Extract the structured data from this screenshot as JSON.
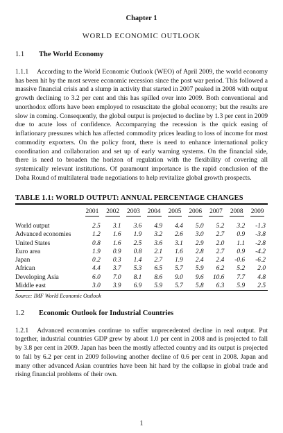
{
  "chapter_label": "Chapter 1",
  "chapter_title": "WORLD ECONOMIC OUTLOOK",
  "section_1": {
    "number": "1.1",
    "title": "The World Economy"
  },
  "para_1_1_1": {
    "number": "1.1.1",
    "text": "According to the World Economic Outlook (WEO) of April 2009, the world economy has been hit by the most severe economic recession since the post war period. This followed a massive financial crisis and a slump in activity that started in 2007 peaked in 2008 with output growth declining to 3.2 per cent and this has spilled over into 2009. Both conventional and unorthodox efforts have been employed to resuscitate the global economy; but the results are slow in coming. Consequently, the global output is projected to decline by 1.3 per cent in 2009 due to acute loss of confidence. Accompanying the recession is the quick easing of inflationary pressures which has affected commodity prices leading to loss of income for most commodity exporters. On the policy front, there is need to enhance international policy coordination and collaboration and set up of early warning systems. On the financial side, there is need to broaden the horizon of regulation with the flexibility of covering all systemically relevant institutions. Of paramount importance is the rapid conclusion of the Doha Round of multilateral trade negotiations to help revitalize global growth prospects."
  },
  "table": {
    "title": "TABLE 1.1: WORLD OUTPUT: ANNUAL PERCENTAGE CHANGES",
    "years": [
      "2001",
      "2002",
      "2003",
      "2004",
      "2005",
      "2006",
      "2007",
      "2008",
      "2009"
    ],
    "rows": [
      {
        "label": "World output",
        "values": [
          "2.5",
          "3.1",
          "3.6",
          "4.9",
          "4.4",
          "5.0",
          "5.2",
          "3.2",
          "-1.3"
        ]
      },
      {
        "label": "Advanced economies",
        "values": [
          "1.2",
          "1.6",
          "1.9",
          "3.2",
          "2.6",
          "3.0",
          "2.7",
          "0.9",
          "-3.8"
        ]
      },
      {
        "label": "United States",
        "values": [
          "0.8",
          "1.6",
          "2.5",
          "3.6",
          "3.1",
          "2.9",
          "2.0",
          "1.1",
          "-2.8"
        ]
      },
      {
        "label": "Euro area",
        "values": [
          "1.9",
          "0.9",
          "0.8",
          "2.1",
          "1.6",
          "2.8",
          "2.7",
          "0.9",
          "-4.2"
        ]
      },
      {
        "label": "Japan",
        "values": [
          "0.2",
          "0.3",
          "1.4",
          "2.7",
          "1.9",
          "2.4",
          "2.4",
          "-0.6",
          "-6.2"
        ]
      },
      {
        "label": "African",
        "values": [
          "4.4",
          "3.7",
          "5.3",
          "6.5",
          "5.7",
          "5.9",
          "6.2",
          "5.2",
          "2.0"
        ]
      },
      {
        "label": "Developing Asia",
        "values": [
          "6.0",
          "7.0",
          "8.1",
          "8.6",
          "9.0",
          "9.6",
          "10.6",
          "7.7",
          "4.8"
        ]
      },
      {
        "label": "Middle east",
        "values": [
          "3.0",
          "3.9",
          "6.9",
          "5.9",
          "5.7",
          "5.8",
          "6.3",
          "5.9",
          "2.5"
        ]
      }
    ],
    "source": "Source: IMF World Economic Outlook"
  },
  "section_2": {
    "number": "1.2",
    "title": "Economic Outlook for Industrial Countries"
  },
  "para_1_2_1": {
    "number": "1.2.1",
    "text": "Advanced economies continue to suffer unprecedented decline in real output. Put together, industrial countries GDP grew by about 1.0 per cent in 2008 and is projected to fall by 3.8 per cent in 2009. Japan has been the mostly affected country and its output is projected to fall by 6.2 per cent in 2009 following another decline of 0.6 per cent in 2008. Japan and many other advanced Asian countries have been hit hard by the collapse in global trade and rising financial problems of their own."
  },
  "page_number": "1"
}
